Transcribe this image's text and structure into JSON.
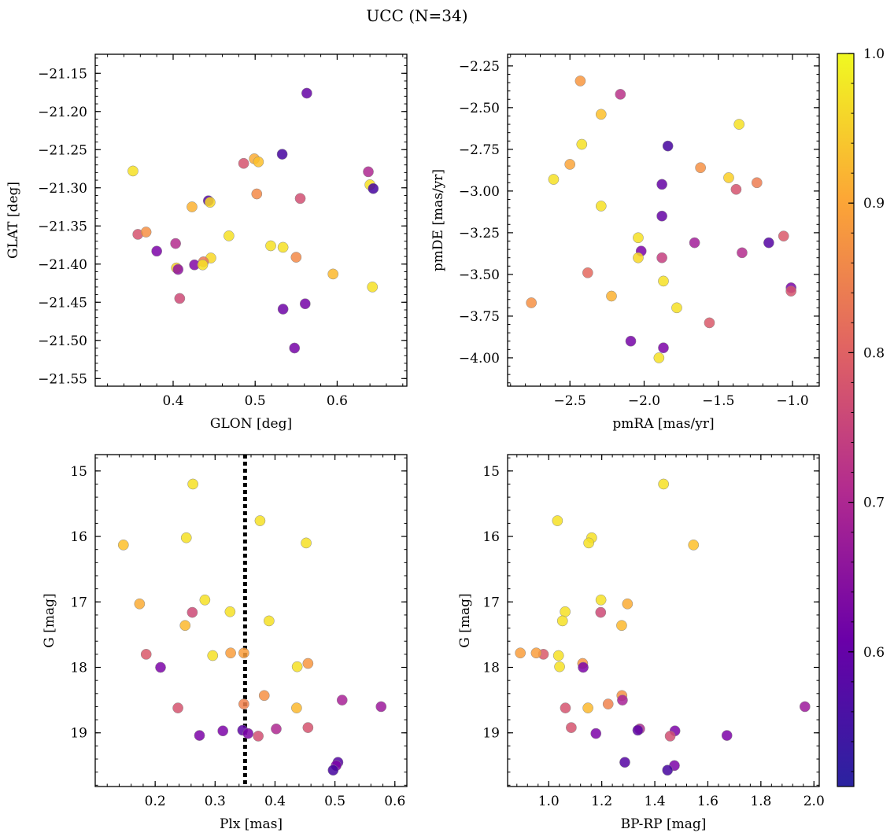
{
  "title": "UCC (N=34)",
  "colorbar": {
    "colormap": "plasma",
    "range": [
      0.51,
      1.0
    ],
    "ticks": [
      "0.6",
      "0.7",
      "0.8",
      "0.9",
      "1.0"
    ],
    "tick_values": [
      0.6,
      0.7,
      0.8,
      0.9,
      1.0
    ]
  },
  "chart_data": [
    {
      "type": "scatter",
      "xlabel": "GLON [deg]",
      "ylabel": "GLAT [deg]",
      "xlim": [
        0.305,
        0.685
      ],
      "ylim": [
        -21.56,
        -21.125
      ],
      "xticks": [
        "0.4",
        "0.5",
        "0.6"
      ],
      "xtick_values": [
        0.4,
        0.5,
        0.6
      ],
      "yticks": [
        "−21.15",
        "−21.20",
        "−21.25",
        "−21.30",
        "−21.35",
        "−21.40",
        "−21.45",
        "−21.50",
        "−21.55"
      ],
      "ytick_values": [
        -21.15,
        -21.2,
        -21.25,
        -21.3,
        -21.35,
        -21.4,
        -21.45,
        -21.5,
        -21.55
      ],
      "points": [
        {
          "x": 0.563,
          "y": -21.176,
          "c": 0.57
        },
        {
          "x": 0.533,
          "y": -21.256,
          "c": 0.53
        },
        {
          "x": 0.351,
          "y": -21.278,
          "c": 0.97
        },
        {
          "x": 0.486,
          "y": -21.268,
          "c": 0.76
        },
        {
          "x": 0.499,
          "y": -21.262,
          "c": 0.9
        },
        {
          "x": 0.504,
          "y": -21.266,
          "c": 0.93
        },
        {
          "x": 0.638,
          "y": -21.279,
          "c": 0.68
        },
        {
          "x": 0.64,
          "y": -21.296,
          "c": 0.97
        },
        {
          "x": 0.644,
          "y": -21.301,
          "c": 0.53
        },
        {
          "x": 0.502,
          "y": -21.308,
          "c": 0.85
        },
        {
          "x": 0.555,
          "y": -21.314,
          "c": 0.75
        },
        {
          "x": 0.443,
          "y": -21.317,
          "c": 0.55
        },
        {
          "x": 0.445,
          "y": -21.319,
          "c": 0.96
        },
        {
          "x": 0.423,
          "y": -21.325,
          "c": 0.91
        },
        {
          "x": 0.357,
          "y": -21.361,
          "c": 0.76
        },
        {
          "x": 0.367,
          "y": -21.358,
          "c": 0.86
        },
        {
          "x": 0.468,
          "y": -21.363,
          "c": 0.97
        },
        {
          "x": 0.403,
          "y": -21.373,
          "c": 0.69
        },
        {
          "x": 0.519,
          "y": -21.376,
          "c": 0.97
        },
        {
          "x": 0.534,
          "y": -21.378,
          "c": 0.97
        },
        {
          "x": 0.38,
          "y": -21.383,
          "c": 0.6
        },
        {
          "x": 0.55,
          "y": -21.391,
          "c": 0.85
        },
        {
          "x": 0.446,
          "y": -21.392,
          "c": 0.96
        },
        {
          "x": 0.437,
          "y": -21.397,
          "c": 0.82
        },
        {
          "x": 0.426,
          "y": -21.401,
          "c": 0.61
        },
        {
          "x": 0.436,
          "y": -21.401,
          "c": 0.97
        },
        {
          "x": 0.404,
          "y": -21.405,
          "c": 0.95
        },
        {
          "x": 0.406,
          "y": -21.407,
          "c": 0.63
        },
        {
          "x": 0.595,
          "y": -21.413,
          "c": 0.92
        },
        {
          "x": 0.643,
          "y": -21.43,
          "c": 0.97
        },
        {
          "x": 0.408,
          "y": -21.445,
          "c": 0.74
        },
        {
          "x": 0.561,
          "y": -21.452,
          "c": 0.59
        },
        {
          "x": 0.534,
          "y": -21.459,
          "c": 0.58
        },
        {
          "x": 0.548,
          "y": -21.51,
          "c": 0.59
        }
      ]
    },
    {
      "type": "scatter",
      "xlabel": "pmRA [mas/yr]",
      "ylabel": "pmDE [mas/yr]",
      "xlim": [
        -2.92,
        -0.82
      ],
      "ylim": [
        -4.17,
        -2.18
      ],
      "xticks": [
        "−2.5",
        "−2.0",
        "−1.5",
        "−1.0"
      ],
      "xtick_values": [
        -2.5,
        -2.0,
        -1.5,
        -1.0
      ],
      "yticks": [
        "−2.25",
        "−2.50",
        "−2.75",
        "−3.00",
        "−3.25",
        "−3.50",
        "−3.75",
        "−4.00"
      ],
      "ytick_values": [
        -2.25,
        -2.5,
        -2.75,
        -3.0,
        -3.25,
        -3.5,
        -3.75,
        -4.0
      ],
      "points": [
        {
          "x": -2.43,
          "y": -2.34,
          "c": 0.87
        },
        {
          "x": -2.16,
          "y": -2.42,
          "c": 0.7
        },
        {
          "x": -2.29,
          "y": -2.54,
          "c": 0.93
        },
        {
          "x": -1.36,
          "y": -2.6,
          "c": 0.97
        },
        {
          "x": -2.42,
          "y": -2.72,
          "c": 0.97
        },
        {
          "x": -1.84,
          "y": -2.73,
          "c": 0.53
        },
        {
          "x": -2.5,
          "y": -2.84,
          "c": 0.89
        },
        {
          "x": -1.62,
          "y": -2.86,
          "c": 0.86
        },
        {
          "x": -2.61,
          "y": -2.93,
          "c": 0.97
        },
        {
          "x": -1.43,
          "y": -2.92,
          "c": 0.95
        },
        {
          "x": -1.24,
          "y": -2.95,
          "c": 0.83
        },
        {
          "x": -1.88,
          "y": -2.96,
          "c": 0.57
        },
        {
          "x": -1.38,
          "y": -2.99,
          "c": 0.76
        },
        {
          "x": -2.29,
          "y": -3.09,
          "c": 0.97
        },
        {
          "x": -1.88,
          "y": -3.15,
          "c": 0.57
        },
        {
          "x": -2.04,
          "y": -3.28,
          "c": 0.97
        },
        {
          "x": -1.06,
          "y": -3.27,
          "c": 0.77
        },
        {
          "x": -1.16,
          "y": -3.31,
          "c": 0.55
        },
        {
          "x": -1.66,
          "y": -3.31,
          "c": 0.66
        },
        {
          "x": -2.02,
          "y": -3.36,
          "c": 0.6
        },
        {
          "x": -1.34,
          "y": -3.37,
          "c": 0.69
        },
        {
          "x": -2.04,
          "y": -3.4,
          "c": 0.96
        },
        {
          "x": -1.88,
          "y": -3.4,
          "c": 0.72
        },
        {
          "x": -2.38,
          "y": -3.49,
          "c": 0.8
        },
        {
          "x": -1.87,
          "y": -3.54,
          "c": 0.97
        },
        {
          "x": -1.01,
          "y": -3.58,
          "c": 0.6
        },
        {
          "x": -1.01,
          "y": -3.6,
          "c": 0.76
        },
        {
          "x": -2.22,
          "y": -3.63,
          "c": 0.91
        },
        {
          "x": -2.76,
          "y": -3.67,
          "c": 0.86
        },
        {
          "x": -1.78,
          "y": -3.7,
          "c": 0.97
        },
        {
          "x": -1.56,
          "y": -3.79,
          "c": 0.77
        },
        {
          "x": -2.09,
          "y": -3.9,
          "c": 0.59
        },
        {
          "x": -1.87,
          "y": -3.94,
          "c": 0.6
        },
        {
          "x": -1.9,
          "y": -4.0,
          "c": 0.97
        }
      ]
    },
    {
      "type": "scatter",
      "xlabel": "Plx [mas]",
      "ylabel": "G [mag]",
      "xlim": [
        0.1,
        0.62
      ],
      "ylim": [
        19.82,
        14.75
      ],
      "xticks": [
        "0.2",
        "0.3",
        "0.4",
        "0.5",
        "0.6"
      ],
      "xtick_values": [
        0.2,
        0.3,
        0.4,
        0.5,
        0.6
      ],
      "yticks": [
        "15",
        "16",
        "17",
        "18",
        "19"
      ],
      "ytick_values": [
        15,
        16,
        17,
        18,
        19
      ],
      "vline": {
        "x": 0.35,
        "style": "dotted",
        "color": "#000000"
      },
      "points": [
        {
          "x": 0.263,
          "y": 15.2,
          "c": 0.97
        },
        {
          "x": 0.375,
          "y": 15.76,
          "c": 0.97
        },
        {
          "x": 0.252,
          "y": 16.02,
          "c": 0.97
        },
        {
          "x": 0.452,
          "y": 16.1,
          "c": 0.97
        },
        {
          "x": 0.147,
          "y": 16.13,
          "c": 0.93
        },
        {
          "x": 0.283,
          "y": 16.97,
          "c": 0.97
        },
        {
          "x": 0.174,
          "y": 17.03,
          "c": 0.9
        },
        {
          "x": 0.262,
          "y": 17.16,
          "c": 0.74
        },
        {
          "x": 0.325,
          "y": 17.15,
          "c": 0.97
        },
        {
          "x": 0.25,
          "y": 17.36,
          "c": 0.92
        },
        {
          "x": 0.39,
          "y": 17.29,
          "c": 0.97
        },
        {
          "x": 0.185,
          "y": 17.8,
          "c": 0.77
        },
        {
          "x": 0.296,
          "y": 17.82,
          "c": 0.97
        },
        {
          "x": 0.326,
          "y": 17.78,
          "c": 0.88
        },
        {
          "x": 0.348,
          "y": 17.78,
          "c": 0.88
        },
        {
          "x": 0.455,
          "y": 17.94,
          "c": 0.87
        },
        {
          "x": 0.437,
          "y": 17.99,
          "c": 0.97
        },
        {
          "x": 0.209,
          "y": 18.0,
          "c": 0.6
        },
        {
          "x": 0.382,
          "y": 18.43,
          "c": 0.86
        },
        {
          "x": 0.348,
          "y": 18.56,
          "c": 0.84
        },
        {
          "x": 0.512,
          "y": 18.5,
          "c": 0.67
        },
        {
          "x": 0.577,
          "y": 18.6,
          "c": 0.65
        },
        {
          "x": 0.238,
          "y": 18.62,
          "c": 0.76
        },
        {
          "x": 0.436,
          "y": 18.62,
          "c": 0.92
        },
        {
          "x": 0.455,
          "y": 18.92,
          "c": 0.76
        },
        {
          "x": 0.402,
          "y": 18.94,
          "c": 0.68
        },
        {
          "x": 0.313,
          "y": 18.97,
          "c": 0.6
        },
        {
          "x": 0.346,
          "y": 18.96,
          "c": 0.56
        },
        {
          "x": 0.355,
          "y": 19.01,
          "c": 0.6
        },
        {
          "x": 0.274,
          "y": 19.04,
          "c": 0.6
        },
        {
          "x": 0.372,
          "y": 19.05,
          "c": 0.75
        },
        {
          "x": 0.505,
          "y": 19.45,
          "c": 0.55
        },
        {
          "x": 0.502,
          "y": 19.5,
          "c": 0.6
        },
        {
          "x": 0.497,
          "y": 19.57,
          "c": 0.53
        }
      ]
    },
    {
      "type": "scatter",
      "xlabel": "BP-RP [mag]",
      "ylabel": "G [mag]",
      "xlim": [
        0.845,
        2.02
      ],
      "ylim": [
        19.82,
        14.75
      ],
      "xticks": [
        "1.0",
        "1.2",
        "1.4",
        "1.6",
        "1.8",
        "2.0"
      ],
      "xtick_values": [
        1.0,
        1.2,
        1.4,
        1.6,
        1.8,
        2.0
      ],
      "yticks": [
        "15",
        "16",
        "17",
        "18",
        "19"
      ],
      "ytick_values": [
        15,
        16,
        17,
        18,
        19
      ],
      "points": [
        {
          "x": 1.433,
          "y": 15.2,
          "c": 0.97
        },
        {
          "x": 1.033,
          "y": 15.76,
          "c": 0.97
        },
        {
          "x": 1.162,
          "y": 16.02,
          "c": 0.97
        },
        {
          "x": 1.151,
          "y": 16.1,
          "c": 0.97
        },
        {
          "x": 1.546,
          "y": 16.13,
          "c": 0.93
        },
        {
          "x": 1.197,
          "y": 16.97,
          "c": 0.97
        },
        {
          "x": 1.297,
          "y": 17.03,
          "c": 0.9
        },
        {
          "x": 1.196,
          "y": 17.16,
          "c": 0.74
        },
        {
          "x": 1.062,
          "y": 17.15,
          "c": 0.97
        },
        {
          "x": 1.275,
          "y": 17.36,
          "c": 0.92
        },
        {
          "x": 1.052,
          "y": 17.29,
          "c": 0.97
        },
        {
          "x": 0.98,
          "y": 17.8,
          "c": 0.77
        },
        {
          "x": 1.037,
          "y": 17.82,
          "c": 0.97
        },
        {
          "x": 0.893,
          "y": 17.78,
          "c": 0.88
        },
        {
          "x": 0.953,
          "y": 17.78,
          "c": 0.88
        },
        {
          "x": 1.128,
          "y": 17.94,
          "c": 0.87
        },
        {
          "x": 1.041,
          "y": 17.99,
          "c": 0.97
        },
        {
          "x": 1.13,
          "y": 18.0,
          "c": 0.6
        },
        {
          "x": 1.276,
          "y": 18.43,
          "c": 0.86
        },
        {
          "x": 1.224,
          "y": 18.56,
          "c": 0.84
        },
        {
          "x": 1.278,
          "y": 18.5,
          "c": 0.67
        },
        {
          "x": 1.966,
          "y": 18.6,
          "c": 0.65
        },
        {
          "x": 1.063,
          "y": 18.62,
          "c": 0.76
        },
        {
          "x": 1.148,
          "y": 18.62,
          "c": 0.92
        },
        {
          "x": 1.085,
          "y": 18.92,
          "c": 0.76
        },
        {
          "x": 1.343,
          "y": 18.94,
          "c": 0.68
        },
        {
          "x": 1.476,
          "y": 18.97,
          "c": 0.6
        },
        {
          "x": 1.336,
          "y": 18.96,
          "c": 0.56
        },
        {
          "x": 1.178,
          "y": 19.01,
          "c": 0.6
        },
        {
          "x": 1.672,
          "y": 19.04,
          "c": 0.6
        },
        {
          "x": 1.458,
          "y": 19.05,
          "c": 0.75
        },
        {
          "x": 1.287,
          "y": 19.45,
          "c": 0.55
        },
        {
          "x": 1.474,
          "y": 19.5,
          "c": 0.6
        },
        {
          "x": 1.448,
          "y": 19.57,
          "c": 0.53
        }
      ]
    }
  ]
}
